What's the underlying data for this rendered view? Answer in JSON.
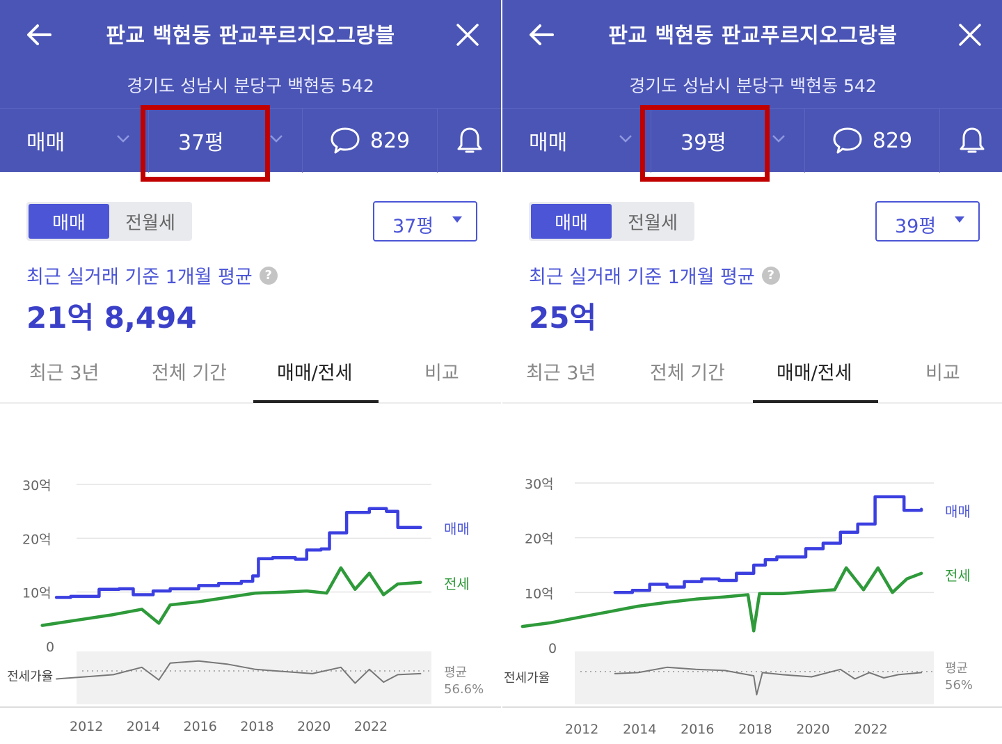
{
  "panels": [
    {
      "header": {
        "title": "판교 백현동 판교푸르지오그랑블",
        "address": "경기도 성남시 분당구 백현동 542"
      },
      "tabbar": {
        "deal_type": "매매",
        "size": "37평",
        "comments": "829"
      },
      "toggle": {
        "sale": "매매",
        "rent": "전월세"
      },
      "size_select": "37평",
      "summary": {
        "label": "최근 실거래 기준 1개월 평균",
        "price": "21억 8,494"
      },
      "chart_tabs": [
        "최근 3년",
        "전체 기간",
        "매매/전세",
        "비교"
      ],
      "active_tab_index": 2,
      "legend": {
        "sale": "매매",
        "jeonse": "전세"
      },
      "ratio": {
        "label": "전세가율",
        "avg_label": "평균",
        "avg_value": "56.6%"
      }
    },
    {
      "header": {
        "title": "판교 백현동 판교푸르지오그랑블",
        "address": "경기도 성남시 분당구 백현동 542"
      },
      "tabbar": {
        "deal_type": "매매",
        "size": "39평",
        "comments": "829"
      },
      "toggle": {
        "sale": "매매",
        "rent": "전월세"
      },
      "size_select": "39평",
      "summary": {
        "label": "최근 실거래 기준 1개월 평균",
        "price": "25억"
      },
      "chart_tabs": [
        "최근 3년",
        "전체 기간",
        "매매/전세",
        "비교"
      ],
      "active_tab_index": 2,
      "legend": {
        "sale": "매매",
        "jeonse": "전세"
      },
      "ratio": {
        "label": "전세가율",
        "avg_label": "평균",
        "avg_value": "56%"
      }
    }
  ],
  "colors": {
    "header": "#4b55b5",
    "accent": "#4b55d6",
    "sale_line": "#3b3fe0",
    "jeonse_line": "#2e9a3a",
    "ratio_line": "#777777",
    "highlight": "#c10000"
  },
  "chart_data": [
    {
      "type": "line",
      "x_unit": "year",
      "xticks": [
        "2012",
        "2014",
        "2016",
        "2018",
        "2020",
        "2022"
      ],
      "yticks": [
        "30억",
        "20억",
        "10억",
        "0"
      ],
      "ylim": [
        0,
        30
      ],
      "grid": true,
      "series": [
        {
          "name": "매매",
          "x": [
            2011.0,
            2011.5,
            2012.5,
            2013.2,
            2013.7,
            2014.4,
            2015.0,
            2016.0,
            2016.7,
            2017.5,
            2017.9,
            2018.1,
            2018.6,
            2019.4,
            2019.8,
            2020.3,
            2020.6,
            2021.2,
            2022.0,
            2022.6,
            2023.0,
            2023.8
          ],
          "y": [
            9.0,
            9.2,
            10.5,
            10.6,
            9.5,
            10.2,
            10.6,
            11.2,
            11.6,
            12.0,
            13.0,
            16.2,
            16.4,
            16.1,
            17.8,
            18.0,
            21.0,
            24.8,
            25.5,
            25.0,
            22.0,
            22.0
          ]
        },
        {
          "name": "전세",
          "x": [
            2010.5,
            2011.0,
            2012.0,
            2013.0,
            2014.0,
            2014.6,
            2015.0,
            2016.0,
            2017.0,
            2018.0,
            2019.0,
            2019.8,
            2020.5,
            2021.0,
            2021.5,
            2022.0,
            2022.5,
            2023.0,
            2023.8
          ],
          "y": [
            3.8,
            4.2,
            5.0,
            5.8,
            6.8,
            4.2,
            7.6,
            8.2,
            9.0,
            9.8,
            10.0,
            10.2,
            9.8,
            14.5,
            10.5,
            13.5,
            9.5,
            11.5,
            11.8
          ]
        },
        {
          "name": "전세가율",
          "x": [
            2011.0,
            2012.0,
            2013.0,
            2014.0,
            2014.6,
            2015.0,
            2016.0,
            2017.0,
            2018.0,
            2019.0,
            2020.0,
            2021.0,
            2021.5,
            2022.0,
            2022.5,
            2023.0,
            2023.8
          ],
          "y": [
            49.0,
            51.0,
            53.0,
            60.0,
            48.0,
            64.0,
            66.0,
            63.0,
            58.0,
            56.0,
            54.0,
            60.0,
            45.0,
            58.0,
            46.0,
            53.0,
            54.0
          ]
        }
      ],
      "ratio_avg": 56.6
    },
    {
      "type": "line",
      "x_unit": "year",
      "xticks": [
        "2012",
        "2014",
        "2016",
        "2018",
        "2020",
        "2022"
      ],
      "yticks": [
        "30억",
        "20억",
        "10억",
        "0"
      ],
      "ylim": [
        0,
        30
      ],
      "grid": true,
      "series": [
        {
          "name": "매매",
          "x": [
            2013.2,
            2013.8,
            2014.4,
            2015.0,
            2015.6,
            2016.2,
            2016.8,
            2017.4,
            2018.0,
            2018.4,
            2018.8,
            2019.4,
            2019.8,
            2020.4,
            2021.0,
            2021.6,
            2022.2,
            2023.0,
            2023.2,
            2023.8
          ],
          "y": [
            10.0,
            10.4,
            11.5,
            11.0,
            12.0,
            12.5,
            12.2,
            13.5,
            15.0,
            16.0,
            16.5,
            16.5,
            18.0,
            19.0,
            21.0,
            22.5,
            27.5,
            27.5,
            25.0,
            25.2
          ]
        },
        {
          "name": "전세",
          "x": [
            2010.0,
            2011.0,
            2012.0,
            2013.0,
            2014.0,
            2015.0,
            2016.0,
            2017.0,
            2017.8,
            2018.0,
            2018.2,
            2019.0,
            2020.0,
            2020.8,
            2021.2,
            2021.8,
            2022.3,
            2022.8,
            2023.3,
            2023.8
          ],
          "y": [
            3.8,
            4.5,
            5.5,
            6.5,
            7.5,
            8.2,
            8.8,
            9.2,
            9.6,
            3.0,
            9.8,
            9.8,
            10.2,
            10.5,
            14.5,
            10.5,
            14.5,
            10.0,
            12.5,
            13.5
          ]
        },
        {
          "name": "전세가율",
          "x": [
            2013.2,
            2014.0,
            2015.0,
            2016.0,
            2017.0,
            2018.0,
            2018.1,
            2018.3,
            2019.0,
            2020.0,
            2021.0,
            2021.5,
            2022.0,
            2022.5,
            2023.0,
            2023.8
          ],
          "y": [
            54.0,
            55.0,
            60.0,
            58.0,
            57.0,
            52.0,
            34.0,
            55.0,
            53.0,
            51.0,
            58.0,
            49.0,
            55.0,
            50.0,
            53.0,
            55.0
          ]
        }
      ],
      "ratio_avg": 56
    }
  ]
}
